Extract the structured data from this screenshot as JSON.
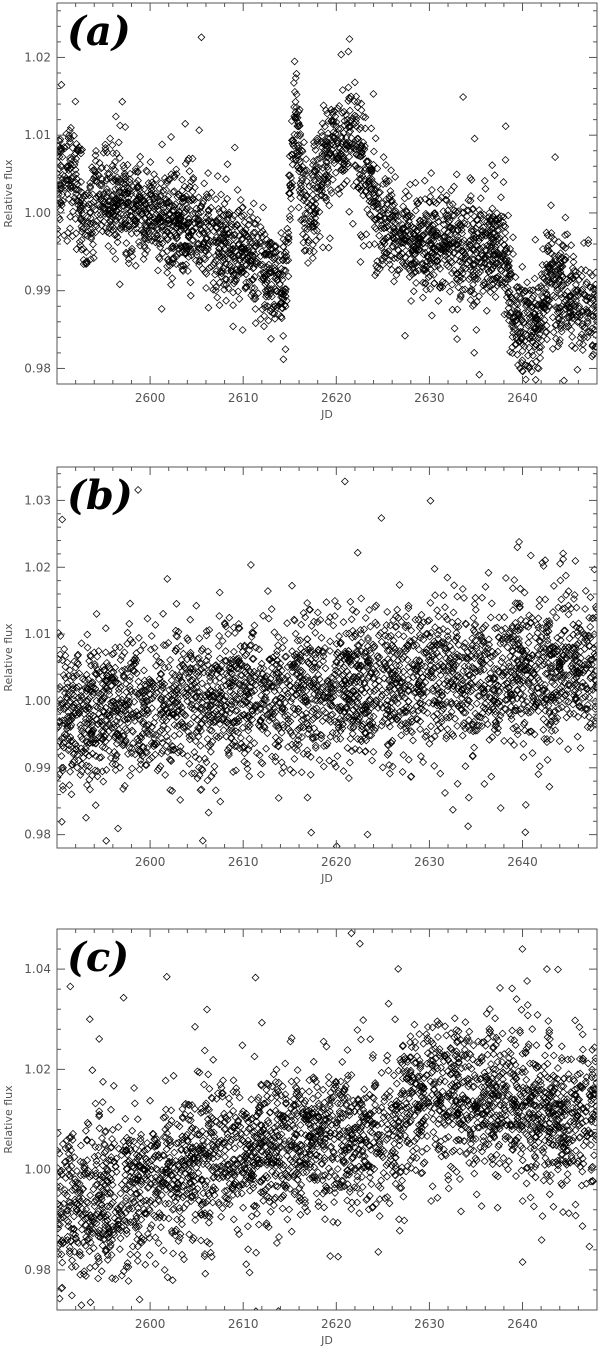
{
  "chart_data": [
    {
      "type": "scatter",
      "marker": "diamond",
      "panel_label": "(a)",
      "xlabel": "JD",
      "ylabel": "Relative flux",
      "xlim": [
        2590,
        2648
      ],
      "ylim": [
        0.978,
        1.027
      ],
      "xticks": [
        2600,
        2610,
        2620,
        2630,
        2640
      ],
      "yticks": [
        0.98,
        0.99,
        1.0,
        1.01,
        1.02
      ],
      "ytick_labels": [
        "0.98",
        "0.99",
        "1.00",
        "1.01",
        "1.02"
      ],
      "grid": false,
      "series": [
        {
          "point_count": 3000,
          "scatter": 0.0033,
          "trend": [
            [
              2590,
              1.004
            ],
            [
              2592,
              1.005
            ],
            [
              2593,
              0.998
            ],
            [
              2594.5,
              1.003
            ],
            [
              2597,
              1.001
            ],
            [
              2600,
              1.0
            ],
            [
              2604,
              0.998
            ],
            [
              2608,
              0.996
            ],
            [
              2610,
              0.995
            ],
            [
              2613,
              0.992
            ],
            [
              2614.5,
              0.9895
            ],
            [
              2615.5,
              1.013
            ],
            [
              2616.2,
              1.006
            ],
            [
              2617,
              0.998
            ],
            [
              2618,
              1.004
            ],
            [
              2620,
              1.009
            ],
            [
              2622,
              1.01
            ],
            [
              2623,
              1.006
            ],
            [
              2624.5,
              1.001
            ],
            [
              2626,
              0.999
            ],
            [
              2628,
              0.996
            ],
            [
              2632,
              0.996
            ],
            [
              2636,
              0.995
            ],
            [
              2638,
              0.996
            ],
            [
              2639,
              0.986
            ],
            [
              2640,
              0.985
            ],
            [
              2642,
              0.986
            ],
            [
              2643,
              0.993
            ],
            [
              2644,
              0.99
            ],
            [
              2646,
              0.988
            ],
            [
              2648,
              0.988
            ]
          ]
        }
      ]
    },
    {
      "type": "scatter",
      "marker": "diamond",
      "panel_label": "(b)",
      "xlabel": "JD",
      "ylabel": "Relative flux",
      "xlim": [
        2590,
        2648
      ],
      "ylim": [
        0.978,
        1.035
      ],
      "xticks": [
        2600,
        2610,
        2620,
        2630,
        2640
      ],
      "yticks": [
        0.98,
        0.99,
        1.0,
        1.01,
        1.02,
        1.03
      ],
      "ytick_labels": [
        "0.98",
        "0.99",
        "1.00",
        "1.01",
        "1.02",
        "1.03"
      ],
      "grid": false,
      "series": [
        {
          "point_count": 3000,
          "scatter": 0.0055,
          "trend": [
            [
              2590,
              0.997
            ],
            [
              2600,
              0.999
            ],
            [
              2610,
              1.001
            ],
            [
              2620,
              1.002
            ],
            [
              2630,
              1.003
            ],
            [
              2640,
              1.004
            ],
            [
              2648,
              1.006
            ]
          ]
        }
      ]
    },
    {
      "type": "scatter",
      "marker": "diamond",
      "panel_label": "(c)",
      "xlabel": "JD",
      "ylabel": "Relative flux",
      "xlim": [
        2590,
        2648
      ],
      "ylim": [
        0.972,
        1.048
      ],
      "xticks": [
        2600,
        2610,
        2620,
        2630,
        2640
      ],
      "yticks": [
        0.98,
        1.0,
        1.02,
        1.04
      ],
      "ytick_labels": [
        "0.98",
        "1.00",
        "1.02",
        "1.04"
      ],
      "grid": false,
      "series": [
        {
          "point_count": 3000,
          "scatter": 0.0075,
          "trend": [
            [
              2590,
              0.993
            ],
            [
              2593,
              0.992
            ],
            [
              2598,
              0.996
            ],
            [
              2602,
              1.0
            ],
            [
              2608,
              1.003
            ],
            [
              2612,
              1.004
            ],
            [
              2616,
              1.006
            ],
            [
              2620,
              1.007
            ],
            [
              2624,
              1.005
            ],
            [
              2627,
              1.012
            ],
            [
              2632,
              1.015
            ],
            [
              2638,
              1.014
            ],
            [
              2644,
              1.01
            ],
            [
              2648,
              1.013
            ]
          ]
        }
      ]
    }
  ]
}
